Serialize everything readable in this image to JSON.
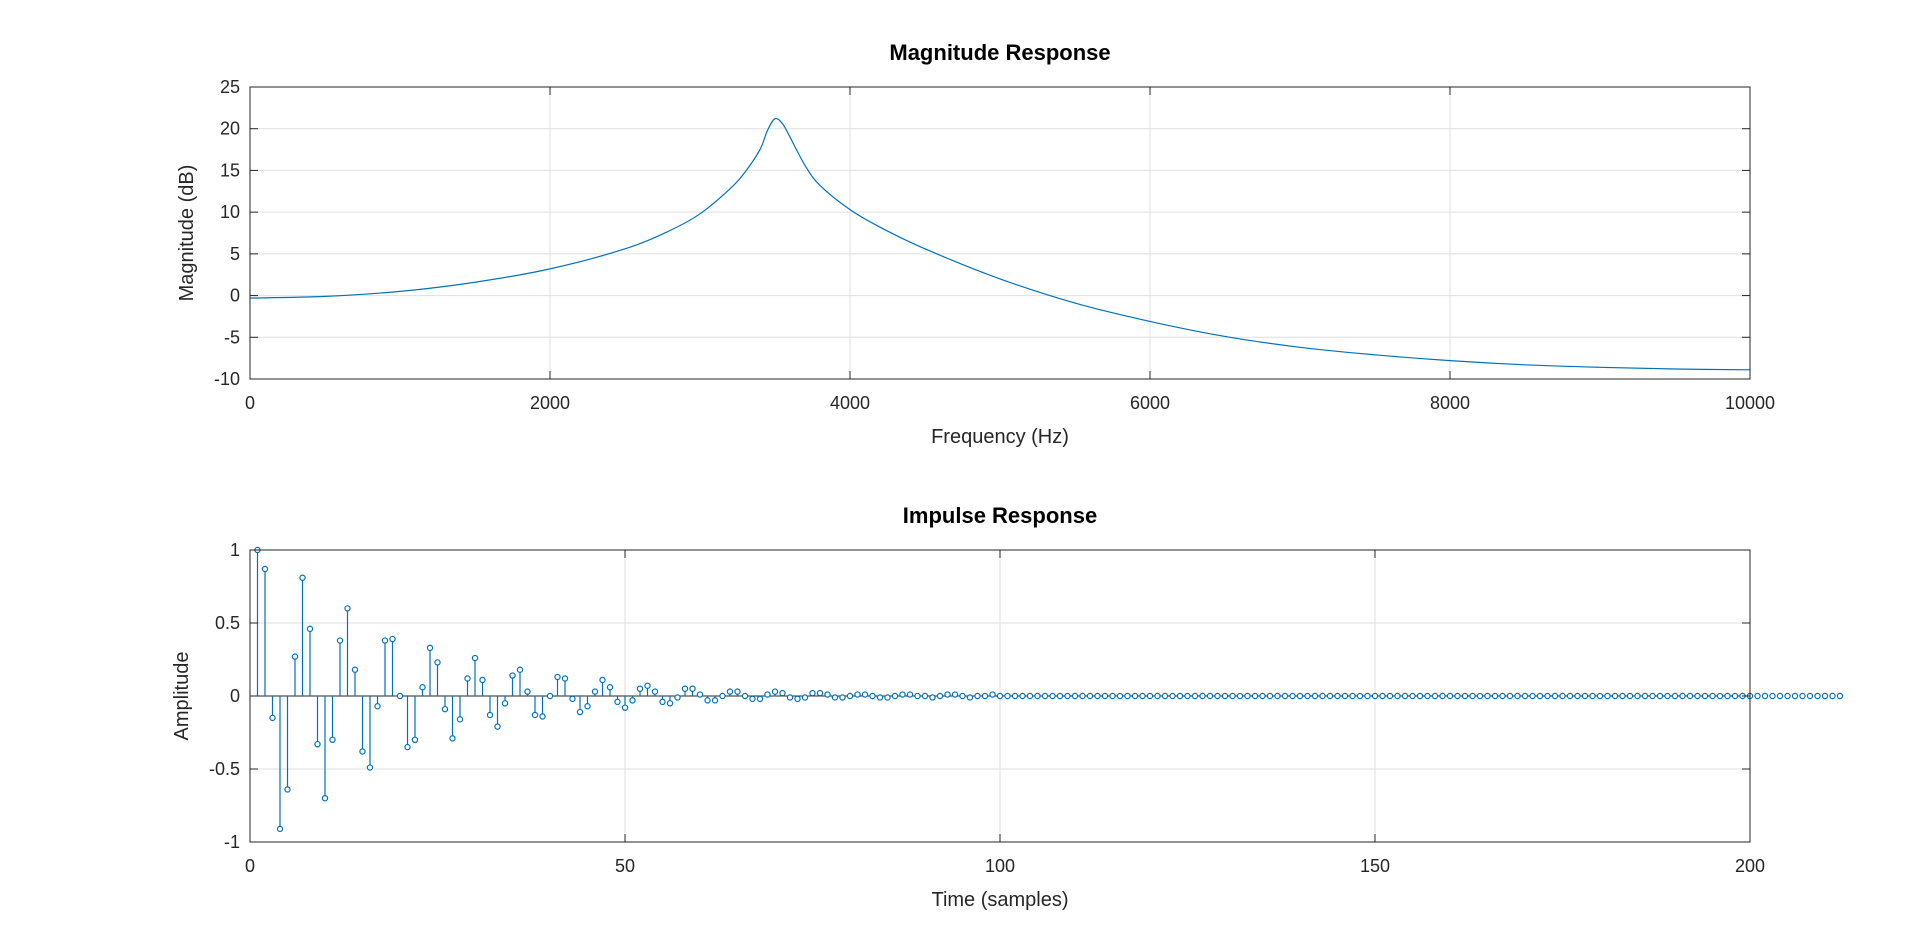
{
  "figure": {
    "background": "#ffffff",
    "series_color": "#0072bd",
    "grid_color": "#dfdfdf"
  },
  "chart_data": [
    {
      "type": "line",
      "title": "Magnitude Response",
      "xlabel": "Frequency (Hz)",
      "ylabel": "Magnitude (dB)",
      "xlim": [
        0,
        10000
      ],
      "ylim": [
        -10,
        25
      ],
      "xticks": [
        0,
        2000,
        4000,
        6000,
        8000,
        10000
      ],
      "xtick_labels": [
        "0",
        "2000",
        "4000",
        "6000",
        "8000",
        "10000"
      ],
      "yticks": [
        -10,
        -5,
        0,
        5,
        10,
        15,
        20,
        25
      ],
      "ytick_labels": [
        "-10",
        "-5",
        "0",
        "5",
        "10",
        "15",
        "20",
        "25"
      ],
      "grid": true,
      "x": [
        0,
        500,
        1000,
        1500,
        2000,
        2500,
        2800,
        3000,
        3200,
        3300,
        3400,
        3450,
        3500,
        3550,
        3600,
        3700,
        3800,
        4000,
        4200,
        4500,
        5000,
        5500,
        6000,
        6500,
        7000,
        7500,
        8000,
        8500,
        9000,
        9500,
        10000
      ],
      "y": [
        -0.3,
        -0.1,
        0.5,
        1.6,
        3.2,
        5.6,
        7.8,
        9.8,
        12.8,
        14.8,
        17.5,
        19.8,
        21.2,
        20.6,
        19.0,
        15.6,
        13.2,
        10.3,
        8.2,
        5.6,
        2.0,
        -0.9,
        -3.1,
        -4.9,
        -6.2,
        -7.1,
        -7.8,
        -8.3,
        -8.6,
        -8.8,
        -8.9
      ]
    },
    {
      "type": "stem",
      "title": "Impulse Response",
      "xlabel": "Time (samples)",
      "ylabel": "Amplitude",
      "xlim": [
        0,
        200
      ],
      "ylim": [
        -1,
        1
      ],
      "xticks": [
        0,
        50,
        100,
        150,
        200
      ],
      "xtick_labels": [
        "0",
        "50",
        "100",
        "150",
        "200"
      ],
      "yticks": [
        -1,
        -0.5,
        0,
        0.5,
        1
      ],
      "ytick_labels": [
        "-1",
        "-0.5",
        "0",
        "0.5",
        "1"
      ],
      "grid": true,
      "x_start": 1,
      "values": [
        1.0,
        0.87,
        -0.15,
        -0.91,
        -0.64,
        0.27,
        0.81,
        0.46,
        -0.33,
        -0.7,
        -0.3,
        0.38,
        0.6,
        0.18,
        -0.38,
        -0.49,
        -0.07,
        0.38,
        0.39,
        0.0,
        -0.35,
        -0.3,
        0.06,
        0.33,
        0.23,
        -0.09,
        -0.29,
        -0.16,
        0.12,
        0.26,
        0.11,
        -0.13,
        -0.21,
        -0.05,
        0.14,
        0.18,
        0.03,
        -0.13,
        -0.14,
        0.0,
        0.13,
        0.12,
        -0.02,
        -0.11,
        -0.07,
        0.03,
        0.11,
        0.06,
        -0.04,
        -0.08,
        -0.03,
        0.05,
        0.07,
        0.03,
        -0.04,
        -0.05,
        -0.01,
        0.05,
        0.05,
        0.01,
        -0.03,
        -0.03,
        0.0,
        0.03,
        0.03,
        0.0,
        -0.02,
        -0.02,
        0.01,
        0.03,
        0.02,
        -0.01,
        -0.02,
        -0.01,
        0.02,
        0.02,
        0.01,
        -0.01,
        -0.01,
        0.0,
        0.01,
        0.01,
        0.0,
        -0.01,
        -0.01,
        0.0,
        0.01,
        0.01,
        0.0,
        0.0,
        -0.01,
        0.0,
        0.01,
        0.01,
        0.0,
        -0.01,
        0.0,
        0.0,
        0.01,
        0.0,
        0.0,
        0.0,
        0.0,
        0.0,
        0.0,
        0.0,
        0.0,
        0.0,
        0.0,
        0.0,
        0.0,
        0.0,
        0.0,
        0.0,
        0.0,
        0.0,
        0.0,
        0.0,
        0.0,
        0.0,
        0.0,
        0.0,
        0.0,
        0.0,
        0.0,
        0.0,
        0.0,
        0.0,
        0.0,
        0.0,
        0.0,
        0.0,
        0.0,
        0.0,
        0.0,
        0.0,
        0.0,
        0.0,
        0.0,
        0.0,
        0.0,
        0.0,
        0.0,
        0.0,
        0.0,
        0.0,
        0.0,
        0.0,
        0.0,
        0.0,
        0.0,
        0.0,
        0.0,
        0.0,
        0.0,
        0.0,
        0.0,
        0.0,
        0.0,
        0.0,
        0.0,
        0.0,
        0.0,
        0.0,
        0.0,
        0.0,
        0.0,
        0.0,
        0.0,
        0.0,
        0.0,
        0.0,
        0.0,
        0.0,
        0.0,
        0.0,
        0.0,
        0.0,
        0.0,
        0.0,
        0.0,
        0.0,
        0.0,
        0.0,
        0.0,
        0.0,
        0.0,
        0.0,
        0.0,
        0.0,
        0.0,
        0.0,
        0.0,
        0.0,
        0.0,
        0.0,
        0.0,
        0.0,
        0.0,
        0.0,
        0.0,
        0.0,
        0.0,
        0.0,
        0.0,
        0.0,
        0.0,
        0.0,
        0.0,
        0.0,
        0.0,
        0.0
      ]
    }
  ]
}
